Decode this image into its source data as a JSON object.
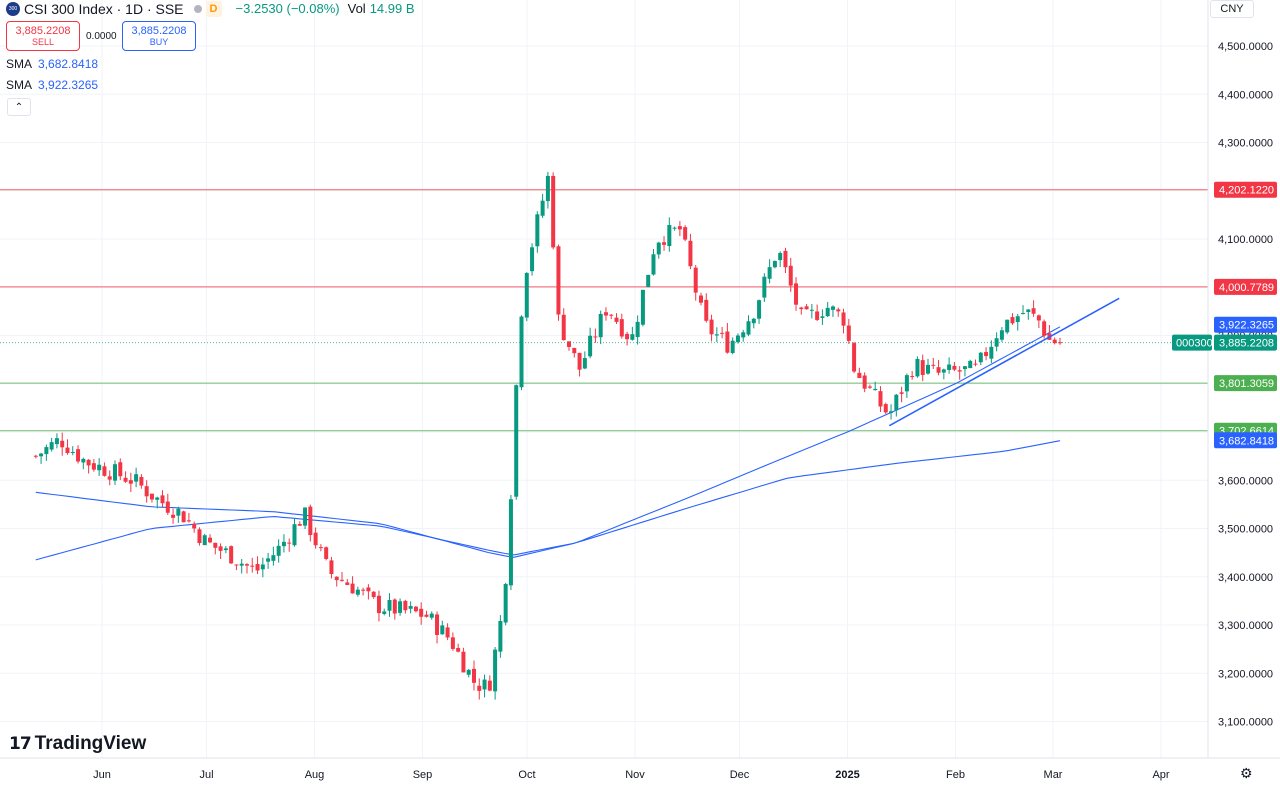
{
  "header": {
    "symbol_logo": "300",
    "title": "CSI 300 Index · 1D · SSE",
    "interval_badge": "D",
    "change": "−3.2530 (−0.08%)",
    "vol_label": "Vol",
    "vol_value": "14.99 B"
  },
  "trade": {
    "sell_price": "3,885.2208",
    "sell_label": "SELL",
    "spread": "0.0000",
    "buy_price": "3,885.2208",
    "buy_label": "BUY"
  },
  "indicators": [
    {
      "name": "SMA",
      "value": "3,682.8418"
    },
    {
      "name": "SMA",
      "value": "3,922.3265"
    }
  ],
  "collapse_icon": "chevron-up-icon",
  "currency": "CNY",
  "brand": {
    "mark": "17",
    "name": "TradingView"
  },
  "settings_icon": "gear-icon",
  "colors": {
    "up": "#089981",
    "down": "#f23645",
    "sma": "#2962ff",
    "resistance": "#f23645",
    "support": "#4caf50"
  },
  "chart_data": {
    "type": "candlestick",
    "yaxis": {
      "range": [
        3070,
        4560
      ],
      "ticks": [
        "4,500.0000",
        "4,400.0000",
        "4,300.0000",
        "4,200.0000",
        "4,100.0000",
        "4,000.0000",
        "3,900.0000",
        "3,800.0000",
        "3,700.0000",
        "3,600.0000",
        "3,500.0000",
        "3,400.0000",
        "3,300.0000",
        "3,200.0000",
        "3,100.0000"
      ],
      "tick_values": [
        4500,
        4400,
        4300,
        4200,
        4100,
        4000,
        3900,
        3800,
        3700,
        3600,
        3500,
        3400,
        3300,
        3200,
        3100
      ]
    },
    "xaxis": {
      "labels": [
        "Jun",
        "Jul",
        "Aug",
        "Sep",
        "Oct",
        "Nov",
        "Dec",
        "2025",
        "Feb",
        "Mar",
        "Apr"
      ],
      "label_dates": [
        "2024-06-01",
        "2024-07-01",
        "2024-08-01",
        "2024-09-01",
        "2024-10-01",
        "2024-11-01",
        "2024-12-01",
        "2025-01-01",
        "2025-02-01",
        "2025-03-01",
        "2025-04-01"
      ]
    },
    "horizontal_lines": [
      {
        "value": 4202.122,
        "label": "4,202.1220",
        "color": "#f23645"
      },
      {
        "value": 4000.7789,
        "label": "4,000.7789",
        "color": "#f23645"
      },
      {
        "value": 3801.3059,
        "label": "3,801.3059",
        "color": "#4caf50"
      },
      {
        "value": 3702.6614,
        "label": "3,702.6614",
        "color": "#4caf50"
      }
    ],
    "price_labels": [
      {
        "value": 3922.3265,
        "label": "3,922.3265",
        "color": "#2962ff"
      },
      {
        "value": 3885.2208,
        "label": "3,885.2208",
        "color": "#089981",
        "ticker": "000300"
      },
      {
        "value": 3682.8418,
        "label": "3,682.8418",
        "color": "#2962ff"
      }
    ],
    "last_price": 3885.2208,
    "trendline": [
      {
        "date": "2025-01-13",
        "price": 3713
      },
      {
        "date": "2025-03-20",
        "price": 3977
      }
    ],
    "anchor_points": [
      {
        "date": "2024-05-13",
        "price": 3650
      },
      {
        "date": "2024-05-20",
        "price": 3685
      },
      {
        "date": "2024-05-27",
        "price": 3640
      },
      {
        "date": "2024-06-03",
        "price": 3620
      },
      {
        "date": "2024-06-10",
        "price": 3600
      },
      {
        "date": "2024-06-17",
        "price": 3560
      },
      {
        "date": "2024-06-24",
        "price": 3530
      },
      {
        "date": "2024-07-01",
        "price": 3470
      },
      {
        "date": "2024-07-08",
        "price": 3445
      },
      {
        "date": "2024-07-15",
        "price": 3410
      },
      {
        "date": "2024-07-22",
        "price": 3460
      },
      {
        "date": "2024-07-29",
        "price": 3530
      },
      {
        "date": "2024-08-05",
        "price": 3410
      },
      {
        "date": "2024-08-12",
        "price": 3380
      },
      {
        "date": "2024-08-19",
        "price": 3340
      },
      {
        "date": "2024-08-26",
        "price": 3330
      },
      {
        "date": "2024-09-02",
        "price": 3320
      },
      {
        "date": "2024-09-09",
        "price": 3270
      },
      {
        "date": "2024-09-16",
        "price": 3180
      },
      {
        "date": "2024-09-20",
        "price": 3170
      },
      {
        "date": "2024-09-24",
        "price": 3330
      },
      {
        "date": "2024-09-26",
        "price": 3500
      },
      {
        "date": "2024-09-27",
        "price": 3700
      },
      {
        "date": "2024-09-30",
        "price": 4017
      },
      {
        "date": "2024-10-08",
        "price": 4256
      },
      {
        "date": "2024-10-09",
        "price": 3950
      },
      {
        "date": "2024-10-16",
        "price": 3830
      },
      {
        "date": "2024-10-24",
        "price": 3960
      },
      {
        "date": "2024-10-31",
        "price": 3890
      },
      {
        "date": "2024-11-07",
        "price": 4100
      },
      {
        "date": "2024-11-14",
        "price": 4120
      },
      {
        "date": "2024-11-21",
        "price": 3920
      },
      {
        "date": "2024-11-28",
        "price": 3880
      },
      {
        "date": "2024-12-05",
        "price": 3950
      },
      {
        "date": "2024-12-12",
        "price": 4080
      },
      {
        "date": "2024-12-19",
        "price": 3930
      },
      {
        "date": "2024-12-26",
        "price": 3960
      },
      {
        "date": "2024-12-31",
        "price": 3935
      },
      {
        "date": "2025-01-03",
        "price": 3830
      },
      {
        "date": "2025-01-10",
        "price": 3760
      },
      {
        "date": "2025-01-13",
        "price": 3735
      },
      {
        "date": "2025-01-20",
        "price": 3840
      },
      {
        "date": "2025-01-27",
        "price": 3820
      },
      {
        "date": "2025-02-07",
        "price": 3830
      },
      {
        "date": "2025-02-14",
        "price": 3920
      },
      {
        "date": "2025-02-21",
        "price": 3950
      },
      {
        "date": "2025-02-25",
        "price": 3930
      },
      {
        "date": "2025-02-28",
        "price": 3890
      },
      {
        "date": "2025-03-03",
        "price": 3885
      }
    ],
    "candle_count": 195,
    "sma_short_anchors": [
      {
        "date": "2024-05-13",
        "price": 3575
      },
      {
        "date": "2024-06-15",
        "price": 3545
      },
      {
        "date": "2024-07-20",
        "price": 3535
      },
      {
        "date": "2024-08-20",
        "price": 3510
      },
      {
        "date": "2024-09-20",
        "price": 3450
      },
      {
        "date": "2024-09-27",
        "price": 3440
      },
      {
        "date": "2024-10-15",
        "price": 3470
      },
      {
        "date": "2024-11-15",
        "price": 3560
      },
      {
        "date": "2024-12-15",
        "price": 3650
      },
      {
        "date": "2025-01-01",
        "price": 3700
      },
      {
        "date": "2025-02-01",
        "price": 3800
      },
      {
        "date": "2025-03-03",
        "price": 3918
      }
    ],
    "sma_long_anchors": [
      {
        "date": "2024-05-13",
        "price": 3435
      },
      {
        "date": "2024-06-15",
        "price": 3500
      },
      {
        "date": "2024-07-20",
        "price": 3525
      },
      {
        "date": "2024-08-20",
        "price": 3505
      },
      {
        "date": "2024-09-20",
        "price": 3455
      },
      {
        "date": "2024-09-27",
        "price": 3445
      },
      {
        "date": "2024-10-15",
        "price": 3470
      },
      {
        "date": "2024-11-15",
        "price": 3540
      },
      {
        "date": "2024-12-15",
        "price": 3605
      },
      {
        "date": "2025-01-15",
        "price": 3635
      },
      {
        "date": "2025-02-15",
        "price": 3660
      },
      {
        "date": "2025-03-03",
        "price": 3682
      }
    ]
  }
}
